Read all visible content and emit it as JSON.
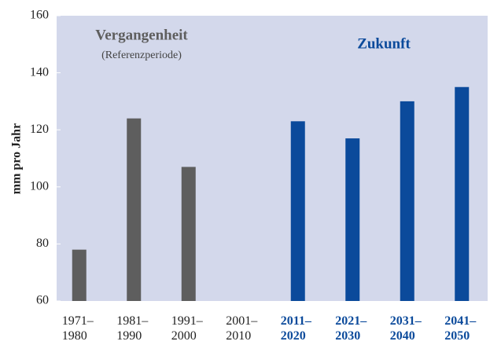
{
  "chart_data": {
    "type": "bar",
    "annotations": [
      "(Referenzperiode)"
    ],
    "y_label": "mm pro Jahr",
    "categories": [
      "1971–1980",
      "1981–1990",
      "1991–2000",
      "2001–2010",
      "2011–2020",
      "2021–2030",
      "2031–2040",
      "2041–2050"
    ],
    "series": [
      {
        "name": "Vergangenheit",
        "color": "#5e5e5e",
        "values": [
          78,
          124,
          107,
          null,
          null,
          null,
          null,
          null
        ]
      },
      {
        "name": "Zukunft",
        "color": "#0b4a9b",
        "values": [
          null,
          null,
          null,
          null,
          123,
          117,
          130,
          135
        ]
      }
    ],
    "ylim": [
      60,
      160
    ],
    "yticks": [
      60,
      80,
      100,
      120,
      140,
      160
    ],
    "grid": false,
    "background": "#d3d8eb"
  }
}
